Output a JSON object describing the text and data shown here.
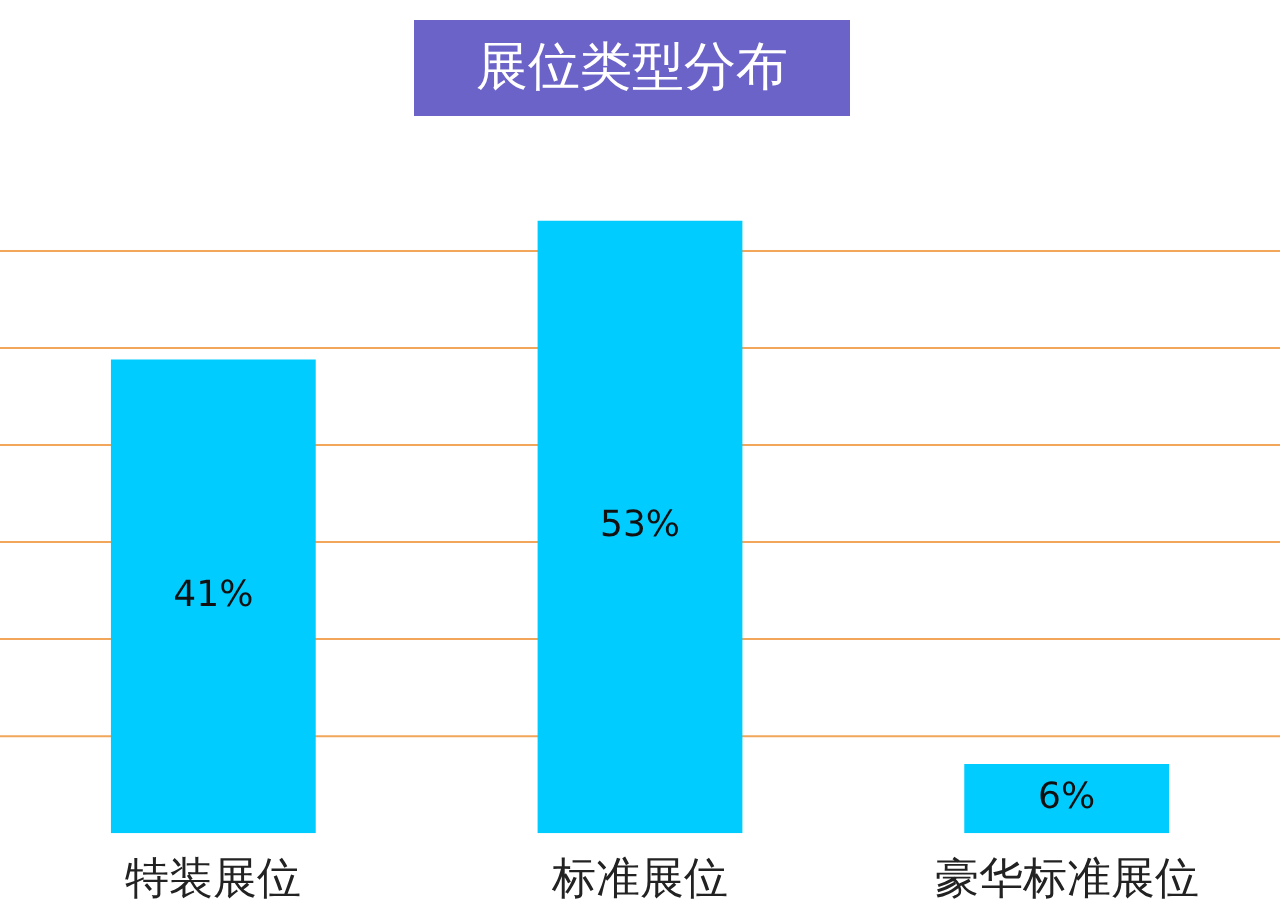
{
  "chart_data": {
    "type": "bar",
    "title": "展位类型分布",
    "categories": [
      "特装展位",
      "标准展位",
      "豪华标准展位"
    ],
    "values": [
      41,
      53,
      6
    ],
    "value_labels": [
      "41%",
      "53%",
      "6%"
    ],
    "color": "#00ccff",
    "ref_lines": [
      {
        "axis": "y",
        "value": 8.4,
        "color": "#f2a65a"
      },
      {
        "axis": "y",
        "value": 16.8,
        "color": "#f2a65a"
      },
      {
        "axis": "y",
        "value": 25.2,
        "color": "#f2a65a"
      },
      {
        "axis": "y",
        "value": 33.6,
        "color": "#f2a65a"
      },
      {
        "axis": "y",
        "value": 42,
        "color": "#f2a65a"
      },
      {
        "axis": "y",
        "value": 50.4,
        "color": "#f2a65a"
      }
    ],
    "tick_labels": "x",
    "legend": false
  }
}
